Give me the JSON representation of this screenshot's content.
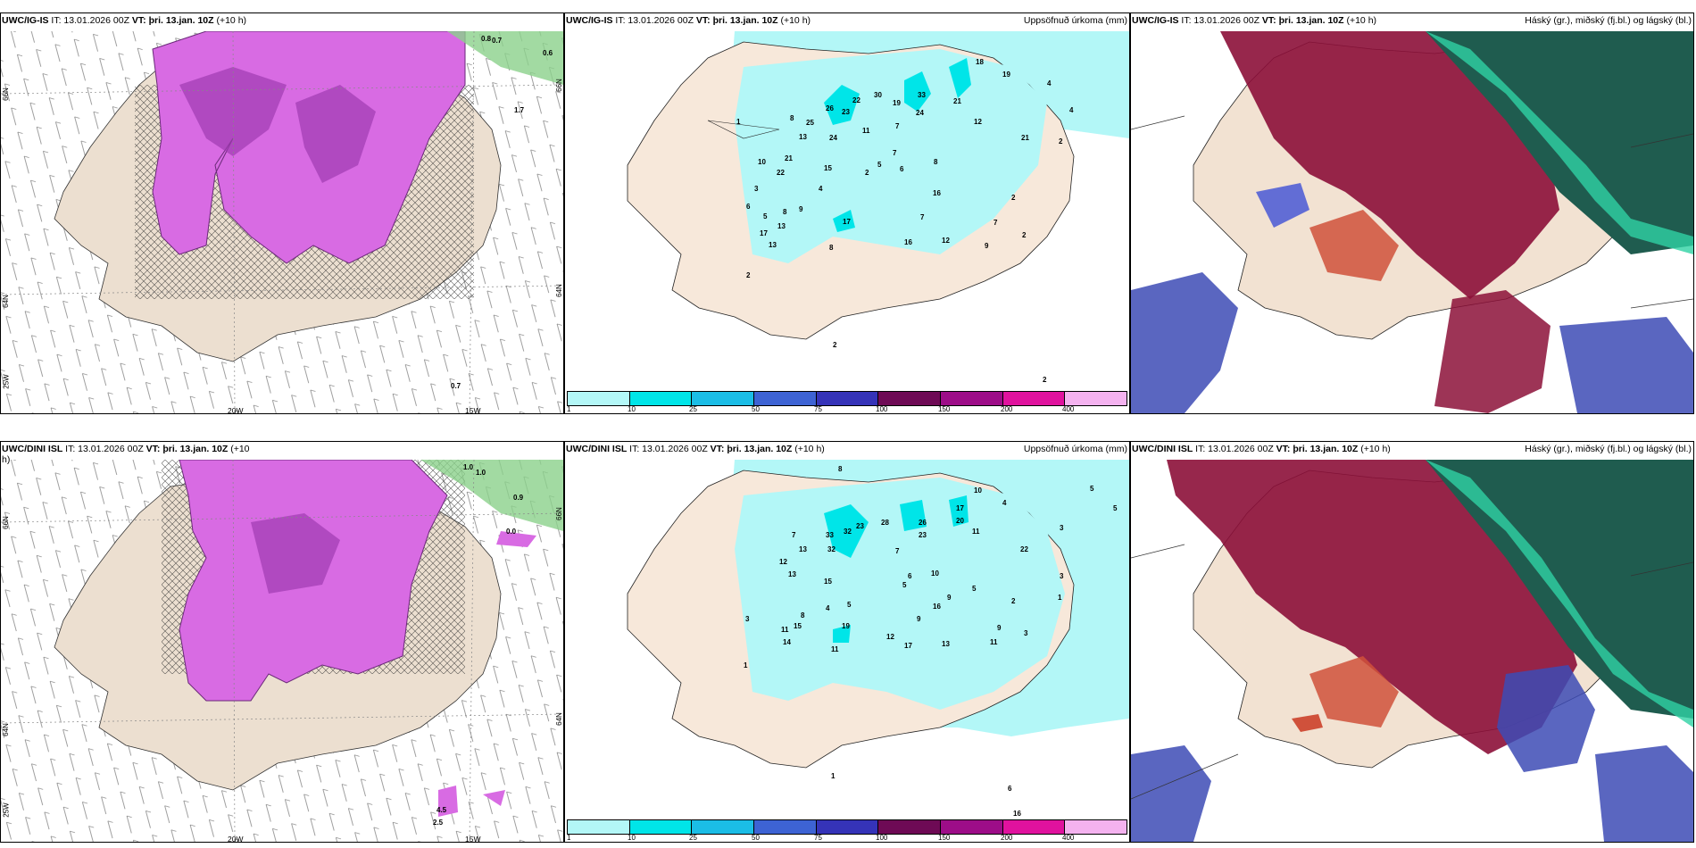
{
  "panels": [
    {
      "model": "UWC/IG-IS",
      "it": "IT: 13.01.2026 00Z",
      "vt_label": "VT:",
      "vt": "þri. 13.jan. 10Z",
      "lead": "(+10 h)",
      "right_title": "",
      "labels": {
        "x1": "20W",
        "x2": "15W",
        "y1": "66N",
        "y2": "64N",
        "y3": "25W",
        "y4": "66N",
        "y5": "64N"
      },
      "corner_values": [
        "0.8",
        "0.7",
        "0.6",
        "1.7",
        "0.7"
      ]
    },
    {
      "model": "UWC/IG-IS",
      "it": "IT: 13.01.2026 00Z",
      "vt_label": "VT:",
      "vt": "þri. 13.jan. 10Z",
      "lead": "(+10 h)",
      "right_title": "Uppsöfnuð úrkoma (mm)",
      "numbers": [
        "18",
        "19",
        "4",
        "4",
        "30",
        "33",
        "21",
        "26",
        "22",
        "19",
        "24",
        "23",
        "12",
        "8",
        "25",
        "13",
        "24",
        "11",
        "21",
        "2",
        "7",
        "1",
        "10",
        "21",
        "15",
        "2",
        "7",
        "6",
        "8",
        "22",
        "3",
        "5",
        "4",
        "16",
        "6",
        "5",
        "8",
        "9",
        "2",
        "17",
        "7",
        "17",
        "13",
        "8",
        "16",
        "12",
        "7",
        "2",
        "13",
        "9",
        "2",
        "2",
        "2"
      ]
    },
    {
      "model": "UWC/IG-IS",
      "it": "IT: 13.01.2026 00Z",
      "vt_label": "VT:",
      "vt": "þri. 13.jan. 10Z",
      "lead": "(+10 h)",
      "right_title": "Háský (gr.), miðský (fj.bl.) og lágský (bl.)"
    },
    {
      "model": "UWC/DINI ISL",
      "it": "IT: 13.01.2026 00Z",
      "vt_label": "VT:",
      "vt": "þri. 13.jan. 10Z",
      "lead": "(+10",
      "lead2": "h)",
      "right_title": "",
      "labels": {
        "x1": "20W",
        "x2": "15W",
        "y1": "66N",
        "y2": "64N",
        "y3": "25W",
        "y4": "66N",
        "y5": "64N"
      },
      "corner_values": [
        "1.0",
        "1.0",
        "0.9",
        "0.0",
        "4.5",
        "2.5"
      ]
    },
    {
      "model": "UWC/DINI ISL",
      "it": "IT: 13.01.2026 00Z",
      "vt_label": "VT:",
      "vt": "þri. 13.jan. 10Z",
      "lead": "(+10 h)",
      "right_title": "Uppsöfnuð úrkoma (mm)",
      "numbers": [
        "8",
        "5",
        "5",
        "10",
        "17",
        "4",
        "20",
        "26",
        "33",
        "32",
        "23",
        "28",
        "23",
        "11",
        "3",
        "22",
        "7",
        "13",
        "32",
        "7",
        "12",
        "13",
        "6",
        "10",
        "5",
        "3",
        "15",
        "5",
        "9",
        "2",
        "1",
        "3",
        "8",
        "4",
        "5",
        "16",
        "11",
        "15",
        "19",
        "9",
        "12",
        "9",
        "14",
        "17",
        "13",
        "11",
        "11",
        "3",
        "1",
        "1",
        "6",
        "16"
      ]
    },
    {
      "model": "UWC/DINI ISL",
      "it": "IT: 13.01.2026 00Z",
      "vt_label": "VT:",
      "vt": "þri. 13.jan. 10Z",
      "lead": "(+10 h)",
      "right_title": "Háský (gr.), miðský (fj.bl.) og lágský (bl.)"
    }
  ],
  "legend": {
    "ticks": [
      "1",
      "10",
      "25",
      "50",
      "75",
      "100",
      "150",
      "200",
      "400"
    ],
    "colors": [
      "#b3f7f7",
      "#00e5e8",
      "#1bbde6",
      "#3d63d4",
      "#3533b8",
      "#6e0a55",
      "#9d0d88",
      "#e0129e",
      "#f4b2ef"
    ]
  }
}
